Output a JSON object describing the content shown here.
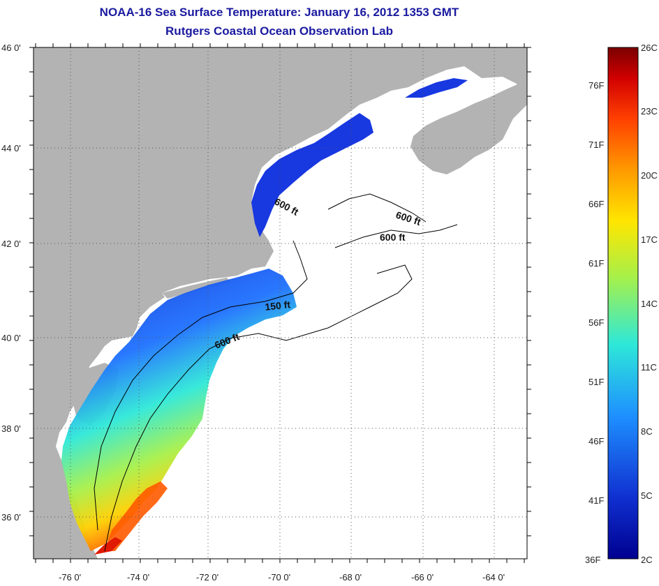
{
  "title": "NOAA-16 Sea Surface Temperature:  January 16, 2012 1353 GMT",
  "subtitle": "Rutgers Coastal Ocean Observation Lab",
  "map": {
    "lon_labels": [
      "-76 0'",
      "-74 0'",
      "-72 0'",
      "-70 0'",
      "-68 0'",
      "-66 0'",
      "-64 0'"
    ],
    "lat_labels": [
      "46 0'",
      "44 0'",
      "42 0'",
      "40 0'",
      "38 0'",
      "36 0'"
    ],
    "lon_range": [
      -77,
      -63
    ],
    "lat_range": [
      35,
      46
    ],
    "contours": [
      {
        "label": "600 ft"
      },
      {
        "label": "600 ft"
      },
      {
        "label": "600 ft"
      },
      {
        "label": "150 ft"
      },
      {
        "label": "600 ft"
      }
    ]
  },
  "colorbar": {
    "celsius": [
      "26C",
      "23C",
      "20C",
      "17C",
      "14C",
      "11C",
      "8C",
      "5C",
      "2C"
    ],
    "fahrenheit": [
      "76F",
      "71F",
      "66F",
      "61F",
      "56F",
      "51F",
      "46F",
      "41F",
      "36F"
    ],
    "colors": [
      "#7a0000",
      "#d10000",
      "#ff4000",
      "#ff9a00",
      "#ffe600",
      "#a6f04a",
      "#2ee8d8",
      "#1e90ff",
      "#1030d0",
      "#000090"
    ]
  }
}
